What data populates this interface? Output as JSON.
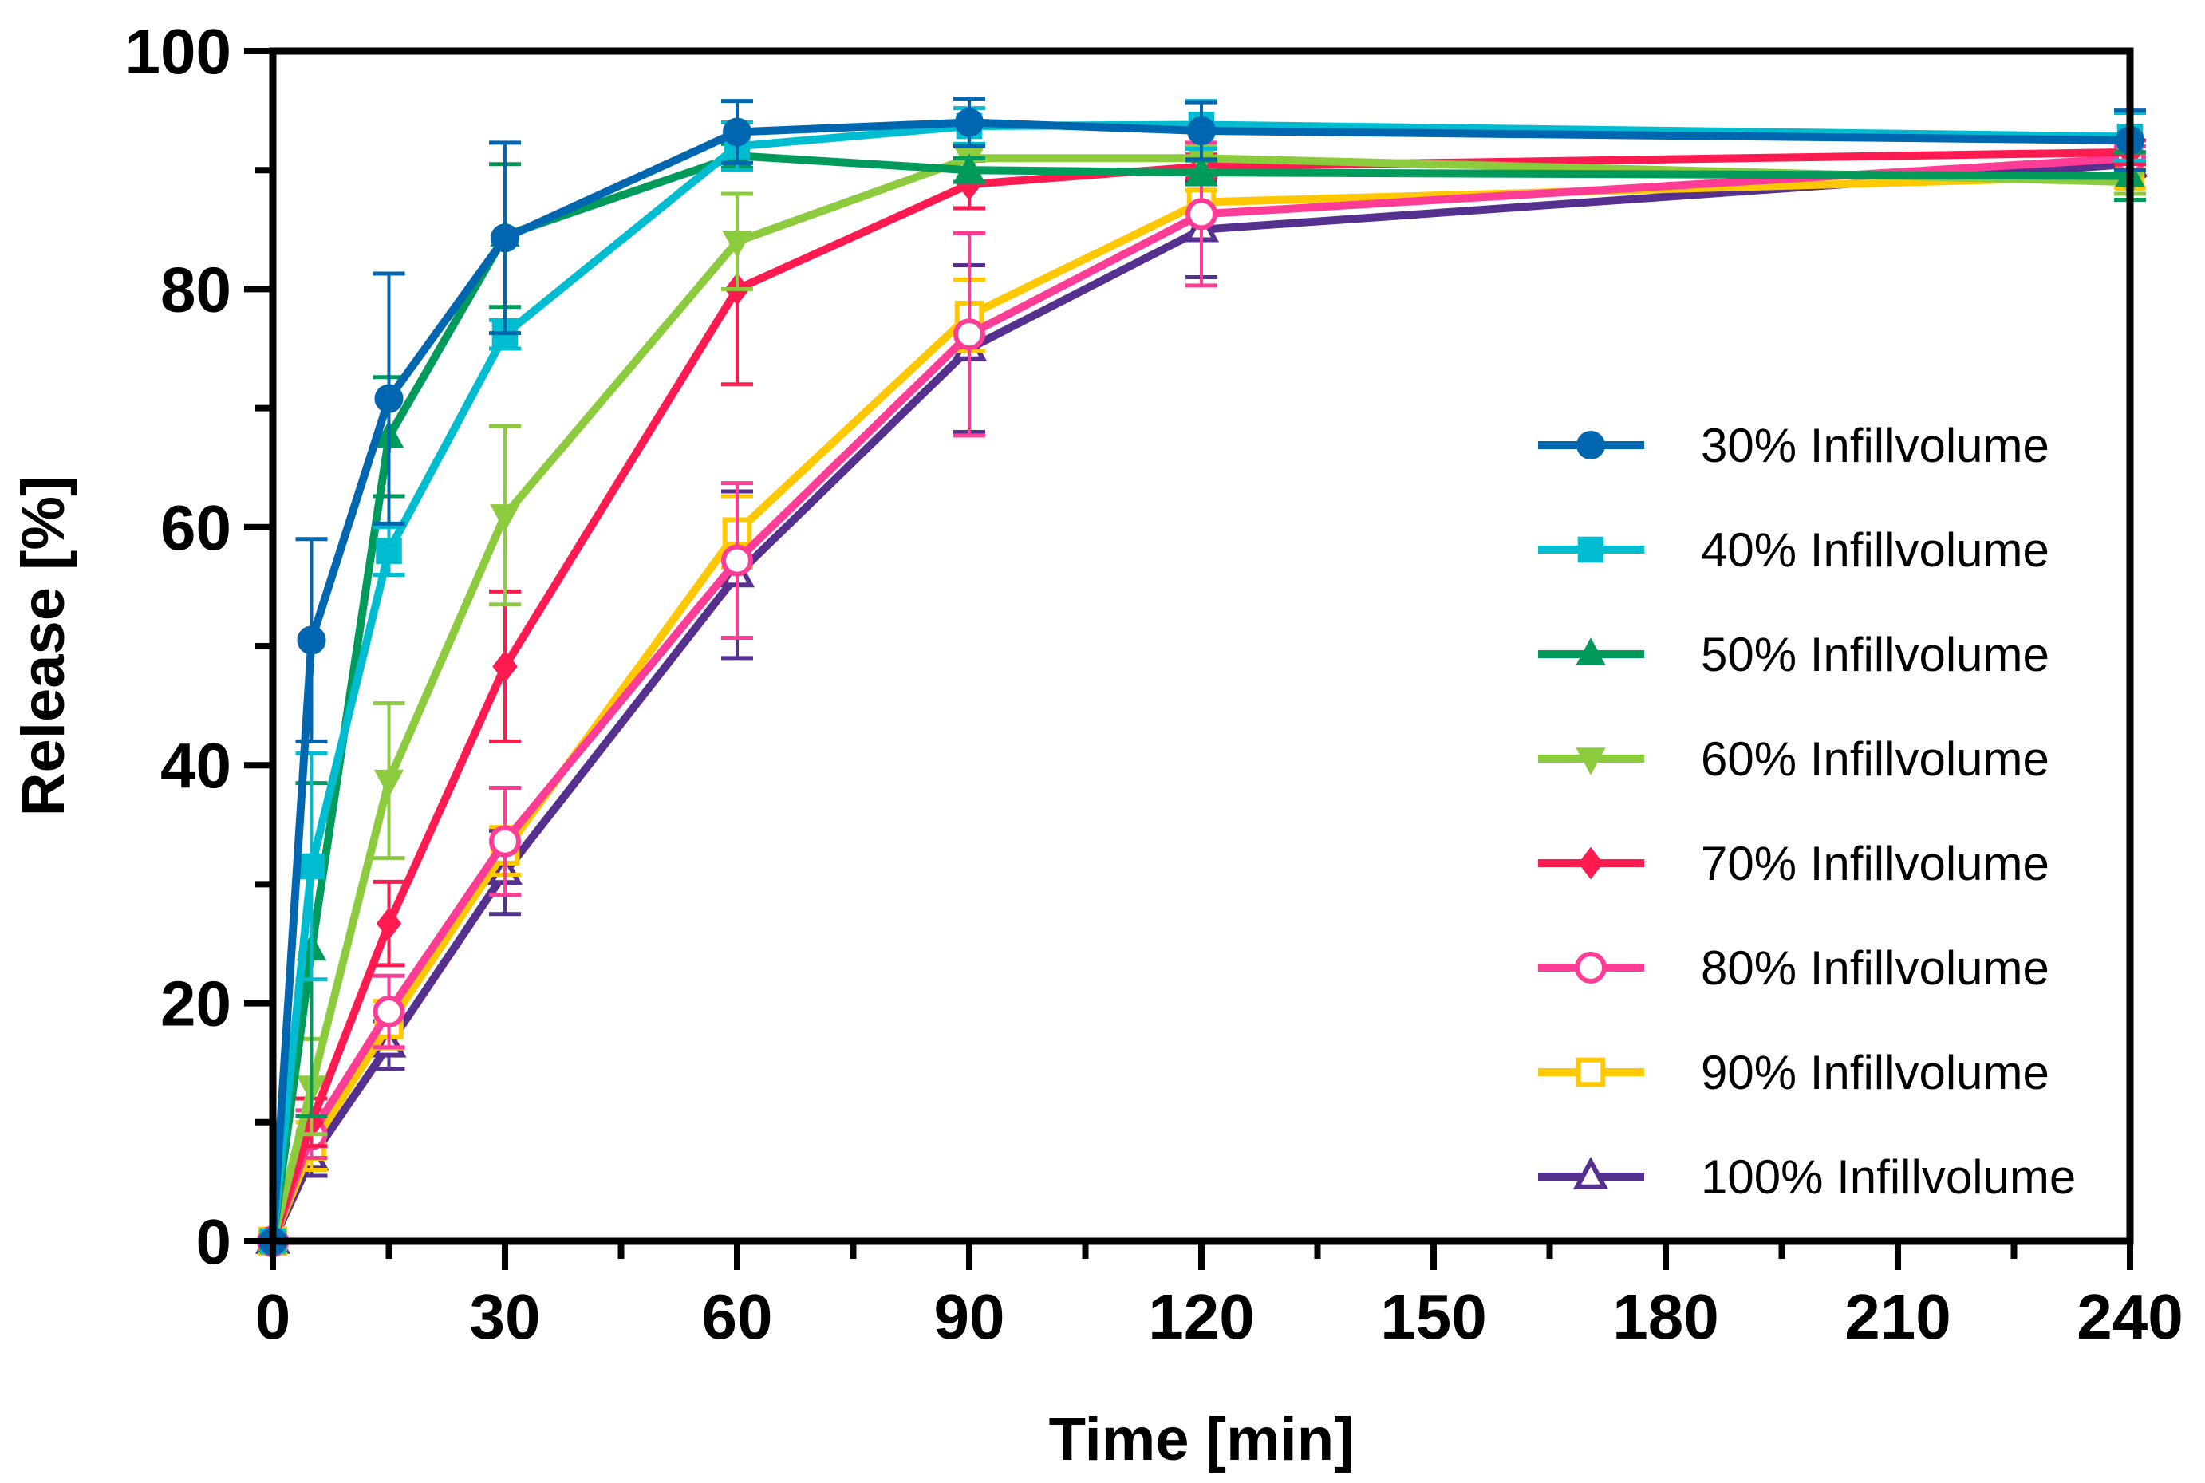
{
  "chart_data": {
    "type": "line",
    "title": "",
    "xlabel": "Time [min]",
    "ylabel": "Release [%]",
    "xlim": [
      0,
      240
    ],
    "ylim": [
      0,
      100
    ],
    "xticks": [
      0,
      30,
      60,
      90,
      120,
      150,
      180,
      210,
      240
    ],
    "yticks": [
      0,
      20,
      40,
      60,
      80,
      100
    ],
    "grid": false,
    "legend_position": "right-center",
    "x": [
      0,
      5,
      15,
      30,
      60,
      90,
      120,
      240
    ],
    "series": [
      {
        "name": "30% Infillvolume",
        "color": "#0066B0",
        "marker": "circle",
        "filled": true,
        "values": [
          0,
          50.5,
          70.8,
          84.3,
          93.2,
          94.0,
          93.3,
          92.5
        ],
        "errors": [
          0,
          8.5,
          10.5,
          8.0,
          2.6,
          2.0,
          2.4,
          2.5
        ]
      },
      {
        "name": "40% Infillvolume",
        "color": "#00BCD0",
        "marker": "square",
        "filled": true,
        "values": [
          0,
          31.5,
          58.0,
          76.2,
          92.0,
          93.7,
          93.8,
          92.8
        ],
        "errors": [
          0,
          9.5,
          2.0,
          1.2,
          2.0,
          1.5,
          2.0,
          2.0
        ]
      },
      {
        "name": "50% Infillvolume",
        "color": "#009A5A",
        "marker": "triangle-up",
        "filled": true,
        "values": [
          0,
          24.5,
          67.6,
          84.5,
          91.2,
          90.0,
          89.8,
          89.5
        ],
        "errors": [
          0,
          14.0,
          5.0,
          6.0,
          1.0,
          1.0,
          1.0,
          2.0
        ]
      },
      {
        "name": "60% Infillvolume",
        "color": "#8DCB3E",
        "marker": "triangle-down",
        "filled": true,
        "values": [
          0,
          13.0,
          38.7,
          61.0,
          84.0,
          91.0,
          91.0,
          89.0
        ],
        "errors": [
          0,
          4.0,
          6.5,
          7.5,
          4.0,
          1.0,
          1.0,
          1.0
        ]
      },
      {
        "name": "70% Infillvolume",
        "color": "#FF1A50",
        "marker": "diamond",
        "filled": true,
        "values": [
          0,
          10.0,
          26.7,
          48.3,
          80.0,
          88.8,
          90.3,
          91.5
        ],
        "errors": [
          0,
          2.0,
          3.5,
          6.3,
          8.0,
          2.0,
          1.0,
          1.0
        ]
      },
      {
        "name": "80% Infillvolume",
        "color": "#FF3D96",
        "marker": "circle",
        "filled": false,
        "values": [
          0,
          9.0,
          19.3,
          33.6,
          57.2,
          76.2,
          86.3,
          91.0
        ],
        "errors": [
          0,
          2.0,
          3.0,
          4.5,
          6.5,
          8.5,
          6.0,
          1.0
        ]
      },
      {
        "name": "90% Infillvolume",
        "color": "#FFC800",
        "marker": "square",
        "filled": false,
        "values": [
          0,
          8.0,
          18.2,
          32.8,
          59.6,
          77.8,
          87.3,
          89.5
        ],
        "errors": [
          0,
          2.0,
          2.0,
          2.0,
          3.0,
          3.0,
          1.0,
          1.0
        ]
      },
      {
        "name": "100% Infillvolume",
        "color": "#55308F",
        "marker": "triangle-up",
        "filled": false,
        "values": [
          0,
          7.0,
          16.5,
          31.0,
          56.0,
          75.0,
          85.0,
          90.5
        ],
        "errors": [
          0,
          1.5,
          2.0,
          3.5,
          7.0,
          7.0,
          4.0,
          1.0
        ]
      }
    ]
  }
}
